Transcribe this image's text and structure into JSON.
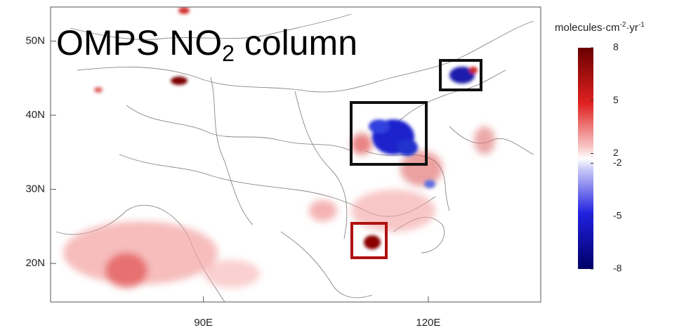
{
  "map": {
    "title": [
      "OMPS NO",
      "2",
      " column"
    ],
    "colorbar_label": [
      "molecules·cm",
      "-2",
      "·yr",
      "-1"
    ],
    "xlim": [
      69.6,
      135
    ],
    "ylim": [
      14.8,
      54.6
    ],
    "xticks": [
      {
        "value": 90,
        "label": "90E"
      },
      {
        "value": 120,
        "label": "120E"
      }
    ],
    "yticks": [
      {
        "value": 50,
        "label": "50N"
      },
      {
        "value": 40,
        "label": "40N"
      },
      {
        "value": 30,
        "label": "30N"
      },
      {
        "value": 20,
        "label": "20N"
      }
    ],
    "clim": [
      -8,
      8
    ],
    "cticks": [
      8,
      5,
      2,
      -2,
      -5,
      -8
    ],
    "colors": {
      "high": "#6b0000",
      "low": "#000066"
    }
  }
}
